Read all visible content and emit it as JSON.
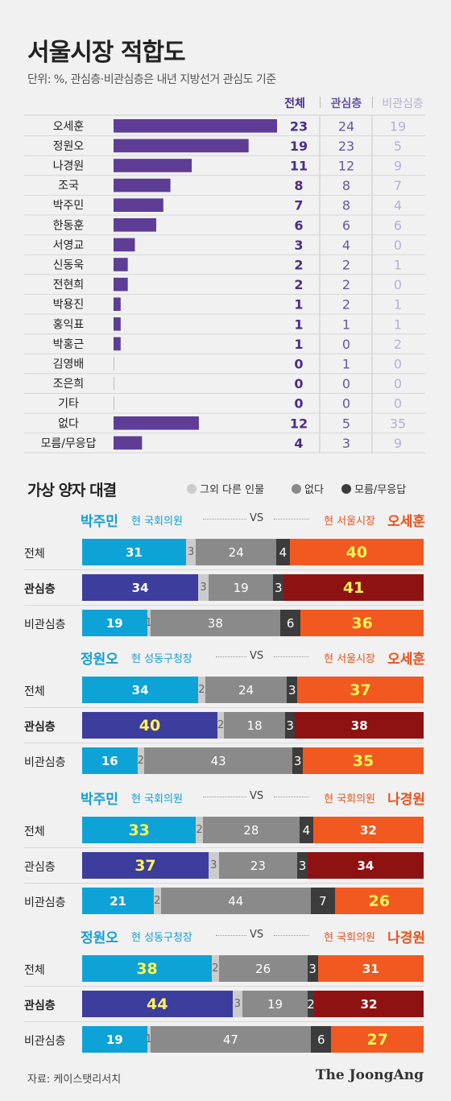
{
  "title": "서울시장 적합도",
  "subtitle": "단위: %, 관심층·비관심층은 내년 지방선거 관심도 기준",
  "colors": {
    "bar_purple": "#5e3d96",
    "overall_text": "#4b2d8a",
    "interest_text": "#6a55a5",
    "noninterest_text": "#b8afd6",
    "blue_light": "#0da3d7",
    "blue_dark": "#3c3d9c",
    "gray_light": "#cbcbcb",
    "gray_mid": "#8a8a8a",
    "gray_dark": "#3c3c3c",
    "orange": "#f25920",
    "darkred": "#8f1212"
  },
  "chart_data": [
    {
      "type": "bar",
      "orientation": "horizontal",
      "title": "서울시장 적합도",
      "unit": "%",
      "categories": [
        "오세훈",
        "정원오",
        "나경원",
        "조국",
        "박주민",
        "한동훈",
        "서영교",
        "신동욱",
        "전현희",
        "박용진",
        "홍익표",
        "박홍근",
        "김영배",
        "조은희",
        "기타",
        "없다",
        "모름/무응답"
      ],
      "series": [
        {
          "name": "전체",
          "values": [
            23,
            19,
            11,
            8,
            7,
            6,
            3,
            2,
            2,
            1,
            1,
            1,
            0,
            0,
            0,
            12,
            4
          ]
        },
        {
          "name": "관심층",
          "values": [
            24,
            23,
            12,
            8,
            8,
            6,
            4,
            2,
            2,
            2,
            1,
            0,
            1,
            0,
            0,
            5,
            3
          ]
        },
        {
          "name": "비관심층",
          "values": [
            19,
            5,
            9,
            7,
            4,
            6,
            0,
            1,
            0,
            1,
            1,
            2,
            0,
            0,
            0,
            35,
            9
          ]
        }
      ]
    },
    {
      "type": "bar",
      "stacked": true,
      "title": "가상 양자 대결",
      "legend": [
        "그외 다른 인물",
        "없다",
        "모름/무응답"
      ],
      "matchups": [
        {
          "left": {
            "name": "박주민",
            "role": "현 국회의원"
          },
          "vs": "VS",
          "right": {
            "name": "오세훈",
            "role": "현 서울시장"
          },
          "rows": [
            {
              "label": "전체",
              "values": [
                31,
                3,
                24,
                4,
                40
              ]
            },
            {
              "label": "관심층",
              "values": [
                34,
                3,
                19,
                3,
                41
              ]
            },
            {
              "label": "비관심층",
              "values": [
                19,
                1,
                38,
                6,
                36
              ]
            }
          ]
        },
        {
          "left": {
            "name": "정원오",
            "role": "현 성동구청장"
          },
          "vs": "VS",
          "right": {
            "name": "오세훈",
            "role": "현 서울시장"
          },
          "rows": [
            {
              "label": "전체",
              "values": [
                34,
                2,
                24,
                3,
                37
              ]
            },
            {
              "label": "관심층",
              "values": [
                40,
                2,
                18,
                3,
                38
              ]
            },
            {
              "label": "비관심층",
              "values": [
                16,
                2,
                43,
                3,
                35
              ]
            }
          ]
        },
        {
          "left": {
            "name": "박주민",
            "role": "현 국회의원"
          },
          "vs": "VS",
          "right": {
            "name": "나경원",
            "role": "현 국회의원"
          },
          "rows": [
            {
              "label": "전체",
              "values": [
                33,
                2,
                28,
                4,
                32
              ]
            },
            {
              "label": "관심층",
              "values": [
                37,
                3,
                23,
                3,
                34
              ]
            },
            {
              "label": "비관심층",
              "values": [
                21,
                2,
                44,
                7,
                26
              ]
            }
          ]
        },
        {
          "left": {
            "name": "정원오",
            "role": "현 성동구청장"
          },
          "vs": "VS",
          "right": {
            "name": "나경원",
            "role": "현 국회의원"
          },
          "rows": [
            {
              "label": "전체",
              "values": [
                38,
                2,
                26,
                3,
                31
              ]
            },
            {
              "label": "관심층",
              "values": [
                44,
                3,
                19,
                2,
                32
              ]
            },
            {
              "label": "비관심층",
              "values": [
                19,
                1,
                47,
                6,
                27
              ]
            }
          ]
        }
      ]
    }
  ],
  "source": "자료: 케이스탯리서치",
  "logo": "The JoongAng"
}
